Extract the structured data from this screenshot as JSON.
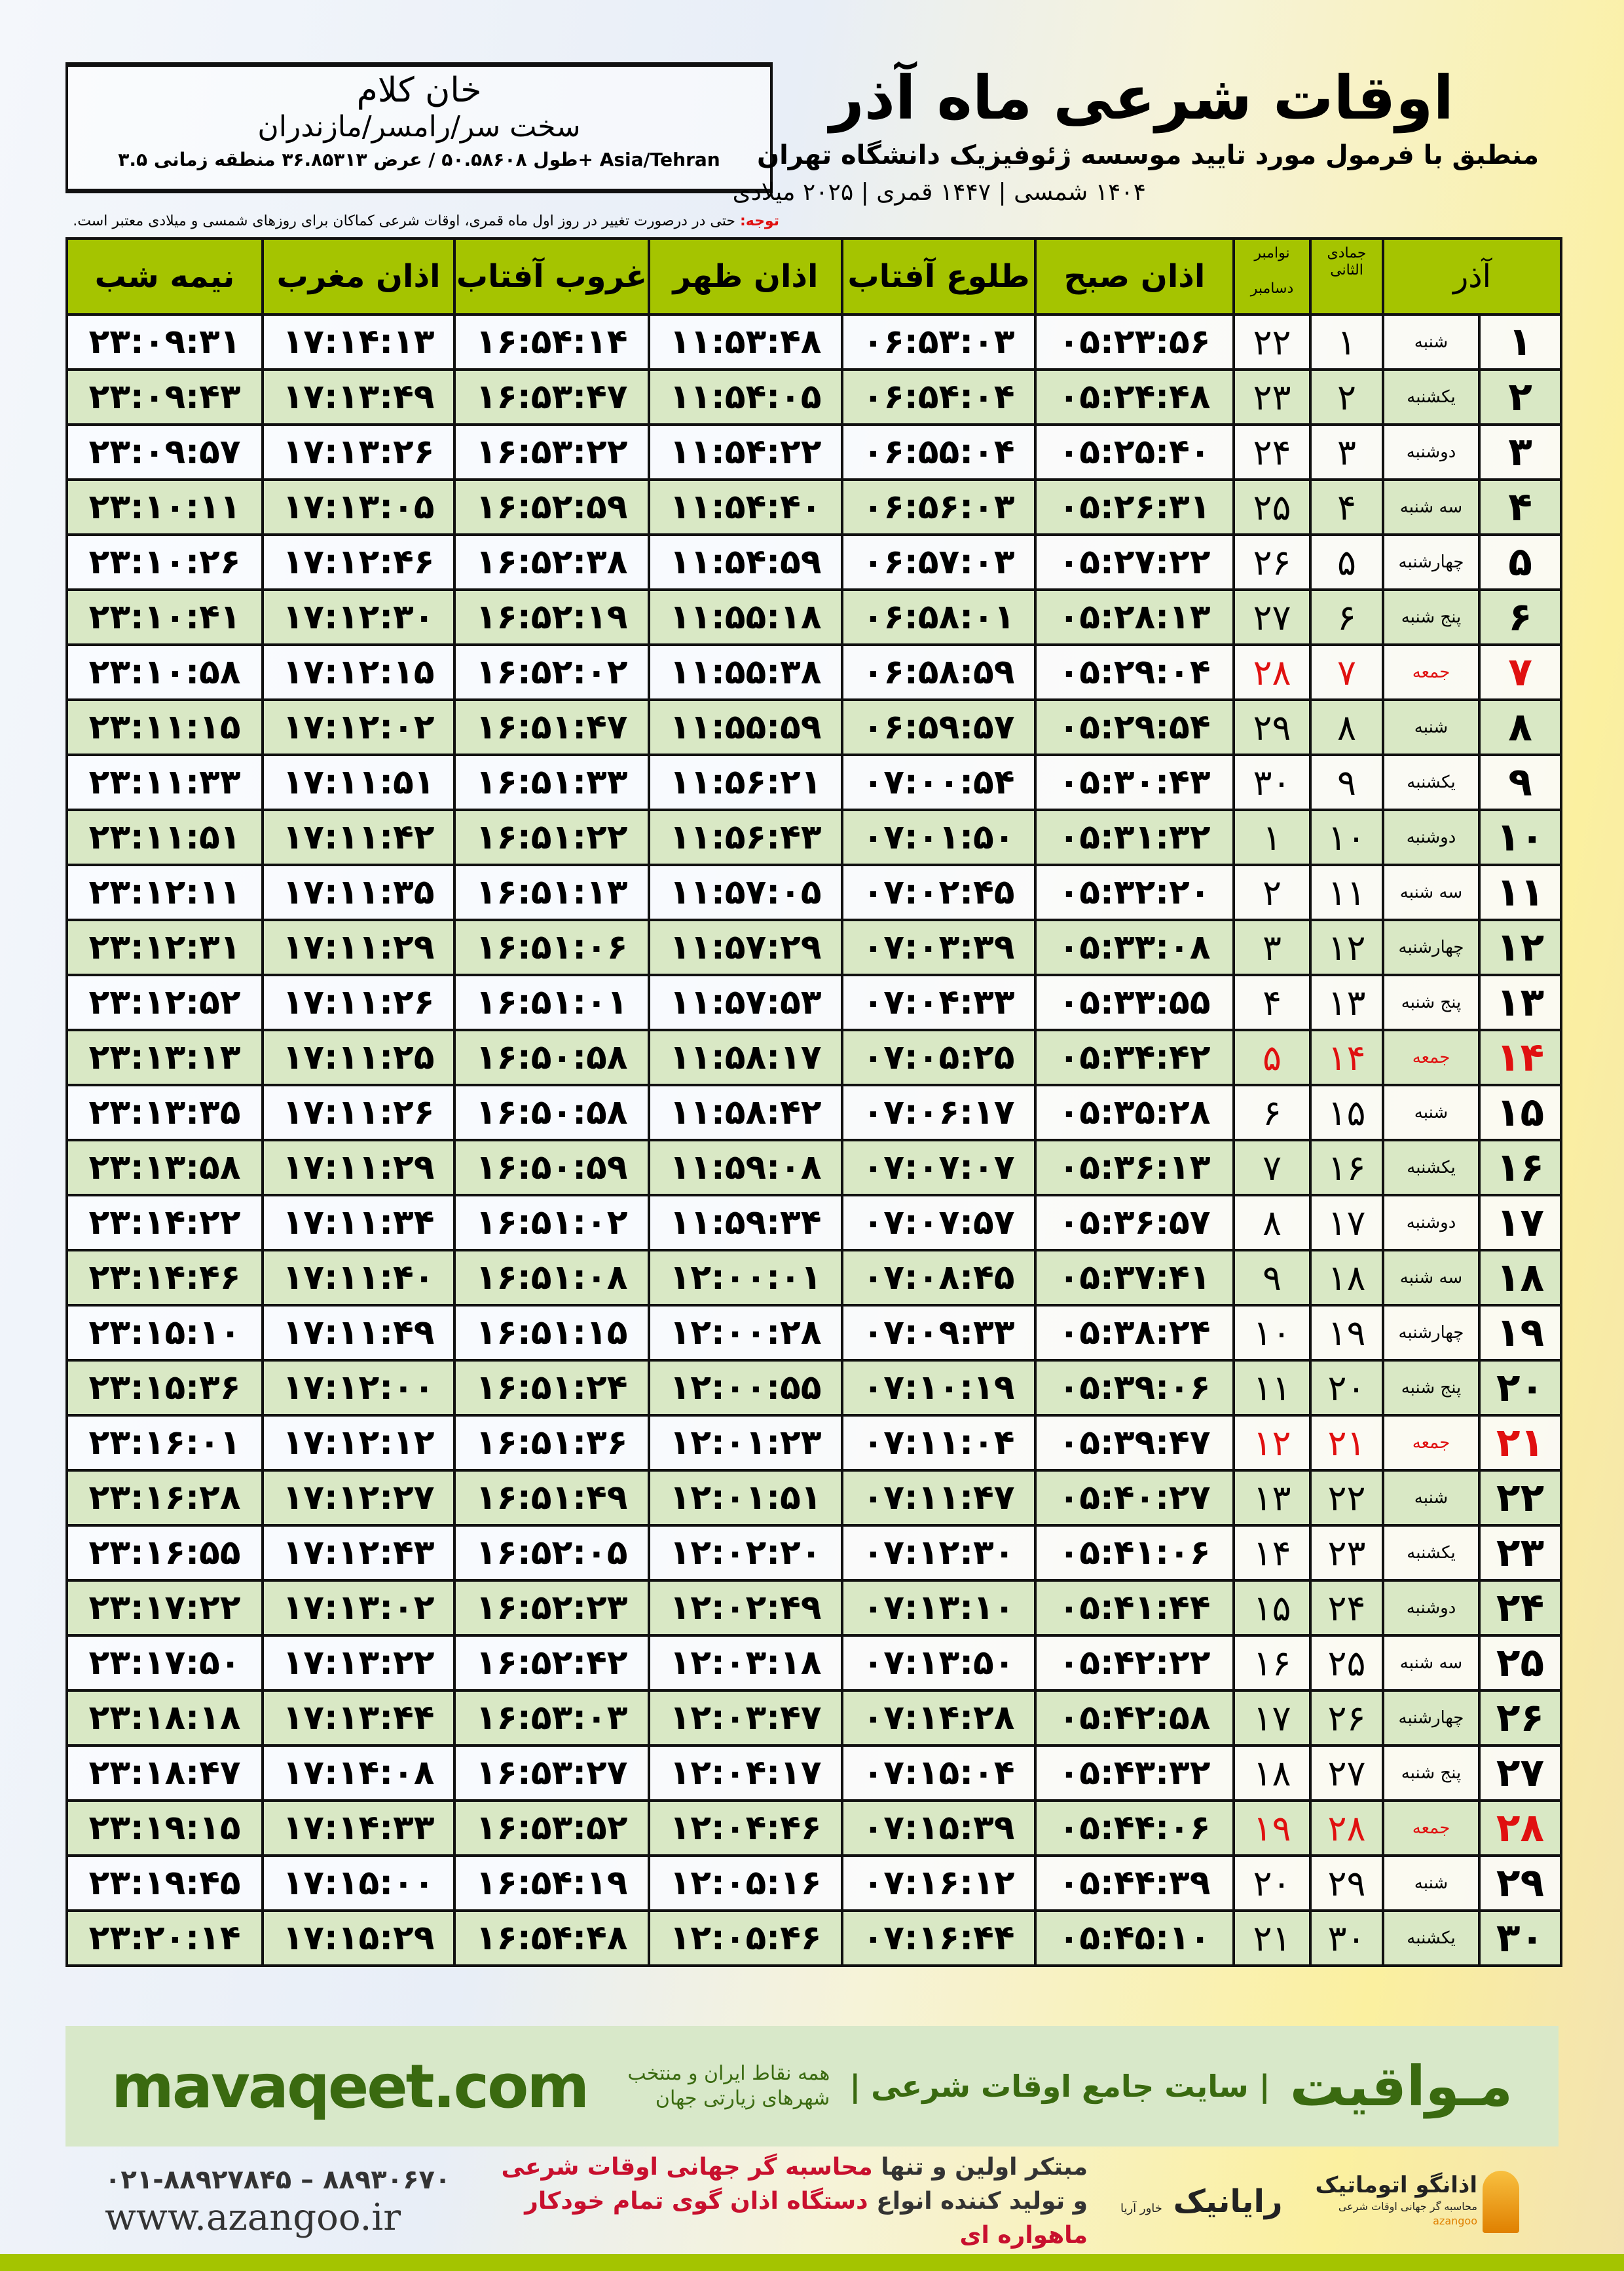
{
  "location": {
    "city": "خان کلام",
    "region": "سخت سر/رامسر/مازندران",
    "coords": "طول ۵۰.۵۸۶۰۸ / عرض ۳۶.۸۵۳۱۳ منطقه زمانی ۳.۵+ Asia/Tehran"
  },
  "header": {
    "title": "اوقات شرعی ماه آذر",
    "subtitle": "منطبق با فرمول مورد تایید موسسه ژئوفیزیک دانشگاه تهران",
    "years": "۱۴۰۴ شمسی | ۱۴۴۷ قمری | ۲۰۲۵ میلادی",
    "note_label": "توجه:",
    "note_text": " حتی در درصورت تغییر در روز اول ماه قمری، اوقات شرعی کماکان برای روزهای شمسی و میلادی معتبر است."
  },
  "table": {
    "headers": {
      "month": "آذر",
      "hijri": "جمادی الثانی",
      "greg_top": "نوامبر",
      "greg_bottom": "دسامبر",
      "sobh": "اذان صبح",
      "tolu": "طلوع آفتاب",
      "zohr": "اذان ظهر",
      "ghorub": "غروب آفتاب",
      "maghrib": "اذان مغرب",
      "nime": "نیمه شب"
    },
    "holiday_color": "#e01010",
    "header_color": "#a5c400",
    "rows": [
      {
        "day": "۱",
        "weekday": "شنبه",
        "hijri": "۱",
        "greg": "۲۲",
        "holiday": false,
        "times": [
          "۰۵:۲۳:۵۶",
          "۰۶:۵۳:۰۳",
          "۱۱:۵۳:۴۸",
          "۱۶:۵۴:۱۴",
          "۱۷:۱۴:۱۳",
          "۲۳:۰۹:۳۱"
        ]
      },
      {
        "day": "۲",
        "weekday": "یکشنبه",
        "hijri": "۲",
        "greg": "۲۳",
        "holiday": false,
        "times": [
          "۰۵:۲۴:۴۸",
          "۰۶:۵۴:۰۴",
          "۱۱:۵۴:۰۵",
          "۱۶:۵۳:۴۷",
          "۱۷:۱۳:۴۹",
          "۲۳:۰۹:۴۳"
        ]
      },
      {
        "day": "۳",
        "weekday": "دوشنبه",
        "hijri": "۳",
        "greg": "۲۴",
        "holiday": false,
        "times": [
          "۰۵:۲۵:۴۰",
          "۰۶:۵۵:۰۴",
          "۱۱:۵۴:۲۲",
          "۱۶:۵۳:۲۲",
          "۱۷:۱۳:۲۶",
          "۲۳:۰۹:۵۷"
        ]
      },
      {
        "day": "۴",
        "weekday": "سه شنبه",
        "hijri": "۴",
        "greg": "۲۵",
        "holiday": false,
        "times": [
          "۰۵:۲۶:۳۱",
          "۰۶:۵۶:۰۳",
          "۱۱:۵۴:۴۰",
          "۱۶:۵۲:۵۹",
          "۱۷:۱۳:۰۵",
          "۲۳:۱۰:۱۱"
        ]
      },
      {
        "day": "۵",
        "weekday": "چهارشنبه",
        "hijri": "۵",
        "greg": "۲۶",
        "holiday": false,
        "times": [
          "۰۵:۲۷:۲۲",
          "۰۶:۵۷:۰۳",
          "۱۱:۵۴:۵۹",
          "۱۶:۵۲:۳۸",
          "۱۷:۱۲:۴۶",
          "۲۳:۱۰:۲۶"
        ]
      },
      {
        "day": "۶",
        "weekday": "پنج شنبه",
        "hijri": "۶",
        "greg": "۲۷",
        "holiday": false,
        "times": [
          "۰۵:۲۸:۱۳",
          "۰۶:۵۸:۰۱",
          "۱۱:۵۵:۱۸",
          "۱۶:۵۲:۱۹",
          "۱۷:۱۲:۳۰",
          "۲۳:۱۰:۴۱"
        ]
      },
      {
        "day": "۷",
        "weekday": "جمعه",
        "hijri": "۷",
        "greg": "۲۸",
        "holiday": true,
        "times": [
          "۰۵:۲۹:۰۴",
          "۰۶:۵۸:۵۹",
          "۱۱:۵۵:۳۸",
          "۱۶:۵۲:۰۲",
          "۱۷:۱۲:۱۵",
          "۲۳:۱۰:۵۸"
        ]
      },
      {
        "day": "۸",
        "weekday": "شنبه",
        "hijri": "۸",
        "greg": "۲۹",
        "holiday": false,
        "times": [
          "۰۵:۲۹:۵۴",
          "۰۶:۵۹:۵۷",
          "۱۱:۵۵:۵۹",
          "۱۶:۵۱:۴۷",
          "۱۷:۱۲:۰۲",
          "۲۳:۱۱:۱۵"
        ]
      },
      {
        "day": "۹",
        "weekday": "یکشنبه",
        "hijri": "۹",
        "greg": "۳۰",
        "holiday": false,
        "times": [
          "۰۵:۳۰:۴۳",
          "۰۷:۰۰:۵۴",
          "۱۱:۵۶:۲۱",
          "۱۶:۵۱:۳۳",
          "۱۷:۱۱:۵۱",
          "۲۳:۱۱:۳۳"
        ]
      },
      {
        "day": "۱۰",
        "weekday": "دوشنبه",
        "hijri": "۱۰",
        "greg": "۱",
        "holiday": false,
        "times": [
          "۰۵:۳۱:۳۲",
          "۰۷:۰۱:۵۰",
          "۱۱:۵۶:۴۳",
          "۱۶:۵۱:۲۲",
          "۱۷:۱۱:۴۲",
          "۲۳:۱۱:۵۱"
        ]
      },
      {
        "day": "۱۱",
        "weekday": "سه شنبه",
        "hijri": "۱۱",
        "greg": "۲",
        "holiday": false,
        "times": [
          "۰۵:۳۲:۲۰",
          "۰۷:۰۲:۴۵",
          "۱۱:۵۷:۰۵",
          "۱۶:۵۱:۱۳",
          "۱۷:۱۱:۳۵",
          "۲۳:۱۲:۱۱"
        ]
      },
      {
        "day": "۱۲",
        "weekday": "چهارشنبه",
        "hijri": "۱۲",
        "greg": "۳",
        "holiday": false,
        "times": [
          "۰۵:۳۳:۰۸",
          "۰۷:۰۳:۳۹",
          "۱۱:۵۷:۲۹",
          "۱۶:۵۱:۰۶",
          "۱۷:۱۱:۲۹",
          "۲۳:۱۲:۳۱"
        ]
      },
      {
        "day": "۱۳",
        "weekday": "پنج شنبه",
        "hijri": "۱۳",
        "greg": "۴",
        "holiday": false,
        "times": [
          "۰۵:۳۳:۵۵",
          "۰۷:۰۴:۳۳",
          "۱۱:۵۷:۵۳",
          "۱۶:۵۱:۰۱",
          "۱۷:۱۱:۲۶",
          "۲۳:۱۲:۵۲"
        ]
      },
      {
        "day": "۱۴",
        "weekday": "جمعه",
        "hijri": "۱۴",
        "greg": "۵",
        "holiday": true,
        "times": [
          "۰۵:۳۴:۴۲",
          "۰۷:۰۵:۲۵",
          "۱۱:۵۸:۱۷",
          "۱۶:۵۰:۵۸",
          "۱۷:۱۱:۲۵",
          "۲۳:۱۳:۱۳"
        ]
      },
      {
        "day": "۱۵",
        "weekday": "شنبه",
        "hijri": "۱۵",
        "greg": "۶",
        "holiday": false,
        "times": [
          "۰۵:۳۵:۲۸",
          "۰۷:۰۶:۱۷",
          "۱۱:۵۸:۴۲",
          "۱۶:۵۰:۵۸",
          "۱۷:۱۱:۲۶",
          "۲۳:۱۳:۳۵"
        ]
      },
      {
        "day": "۱۶",
        "weekday": "یکشنبه",
        "hijri": "۱۶",
        "greg": "۷",
        "holiday": false,
        "times": [
          "۰۵:۳۶:۱۳",
          "۰۷:۰۷:۰۷",
          "۱۱:۵۹:۰۸",
          "۱۶:۵۰:۵۹",
          "۱۷:۱۱:۲۹",
          "۲۳:۱۳:۵۸"
        ]
      },
      {
        "day": "۱۷",
        "weekday": "دوشنبه",
        "hijri": "۱۷",
        "greg": "۸",
        "holiday": false,
        "times": [
          "۰۵:۳۶:۵۷",
          "۰۷:۰۷:۵۷",
          "۱۱:۵۹:۳۴",
          "۱۶:۵۱:۰۲",
          "۱۷:۱۱:۳۴",
          "۲۳:۱۴:۲۲"
        ]
      },
      {
        "day": "۱۸",
        "weekday": "سه شنبه",
        "hijri": "۱۸",
        "greg": "۹",
        "holiday": false,
        "times": [
          "۰۵:۳۷:۴۱",
          "۰۷:۰۸:۴۵",
          "۱۲:۰۰:۰۱",
          "۱۶:۵۱:۰۸",
          "۱۷:۱۱:۴۰",
          "۲۳:۱۴:۴۶"
        ]
      },
      {
        "day": "۱۹",
        "weekday": "چهارشنبه",
        "hijri": "۱۹",
        "greg": "۱۰",
        "holiday": false,
        "times": [
          "۰۵:۳۸:۲۴",
          "۰۷:۰۹:۳۳",
          "۱۲:۰۰:۲۸",
          "۱۶:۵۱:۱۵",
          "۱۷:۱۱:۴۹",
          "۲۳:۱۵:۱۰"
        ]
      },
      {
        "day": "۲۰",
        "weekday": "پنج شنبه",
        "hijri": "۲۰",
        "greg": "۱۱",
        "holiday": false,
        "times": [
          "۰۵:۳۹:۰۶",
          "۰۷:۱۰:۱۹",
          "۱۲:۰۰:۵۵",
          "۱۶:۵۱:۲۴",
          "۱۷:۱۲:۰۰",
          "۲۳:۱۵:۳۶"
        ]
      },
      {
        "day": "۲۱",
        "weekday": "جمعه",
        "hijri": "۲۱",
        "greg": "۱۲",
        "holiday": true,
        "times": [
          "۰۵:۳۹:۴۷",
          "۰۷:۱۱:۰۴",
          "۱۲:۰۱:۲۳",
          "۱۶:۵۱:۳۶",
          "۱۷:۱۲:۱۲",
          "۲۳:۱۶:۰۱"
        ]
      },
      {
        "day": "۲۲",
        "weekday": "شنبه",
        "hijri": "۲۲",
        "greg": "۱۳",
        "holiday": false,
        "times": [
          "۰۵:۴۰:۲۷",
          "۰۷:۱۱:۴۷",
          "۱۲:۰۱:۵۱",
          "۱۶:۵۱:۴۹",
          "۱۷:۱۲:۲۷",
          "۲۳:۱۶:۲۸"
        ]
      },
      {
        "day": "۲۳",
        "weekday": "یکشنبه",
        "hijri": "۲۳",
        "greg": "۱۴",
        "holiday": false,
        "times": [
          "۰۵:۴۱:۰۶",
          "۰۷:۱۲:۳۰",
          "۱۲:۰۲:۲۰",
          "۱۶:۵۲:۰۵",
          "۱۷:۱۲:۴۳",
          "۲۳:۱۶:۵۵"
        ]
      },
      {
        "day": "۲۴",
        "weekday": "دوشنبه",
        "hijri": "۲۴",
        "greg": "۱۵",
        "holiday": false,
        "times": [
          "۰۵:۴۱:۴۴",
          "۰۷:۱۳:۱۰",
          "۱۲:۰۲:۴۹",
          "۱۶:۵۲:۲۳",
          "۱۷:۱۳:۰۲",
          "۲۳:۱۷:۲۲"
        ]
      },
      {
        "day": "۲۵",
        "weekday": "سه شنبه",
        "hijri": "۲۵",
        "greg": "۱۶",
        "holiday": false,
        "times": [
          "۰۵:۴۲:۲۲",
          "۰۷:۱۳:۵۰",
          "۱۲:۰۳:۱۸",
          "۱۶:۵۲:۴۲",
          "۱۷:۱۳:۲۲",
          "۲۳:۱۷:۵۰"
        ]
      },
      {
        "day": "۲۶",
        "weekday": "چهارشنبه",
        "hijri": "۲۶",
        "greg": "۱۷",
        "holiday": false,
        "times": [
          "۰۵:۴۲:۵۸",
          "۰۷:۱۴:۲۸",
          "۱۲:۰۳:۴۷",
          "۱۶:۵۳:۰۳",
          "۱۷:۱۳:۴۴",
          "۲۳:۱۸:۱۸"
        ]
      },
      {
        "day": "۲۷",
        "weekday": "پنج شنبه",
        "hijri": "۲۷",
        "greg": "۱۸",
        "holiday": false,
        "times": [
          "۰۵:۴۳:۳۲",
          "۰۷:۱۵:۰۴",
          "۱۲:۰۴:۱۷",
          "۱۶:۵۳:۲۷",
          "۱۷:۱۴:۰۸",
          "۲۳:۱۸:۴۷"
        ]
      },
      {
        "day": "۲۸",
        "weekday": "جمعه",
        "hijri": "۲۸",
        "greg": "۱۹",
        "holiday": true,
        "times": [
          "۰۵:۴۴:۰۶",
          "۰۷:۱۵:۳۹",
          "۱۲:۰۴:۴۶",
          "۱۶:۵۳:۵۲",
          "۱۷:۱۴:۳۳",
          "۲۳:۱۹:۱۵"
        ]
      },
      {
        "day": "۲۹",
        "weekday": "شنبه",
        "hijri": "۲۹",
        "greg": "۲۰",
        "holiday": false,
        "times": [
          "۰۵:۴۴:۳۹",
          "۰۷:۱۶:۱۲",
          "۱۲:۰۵:۱۶",
          "۱۶:۵۴:۱۹",
          "۱۷:۱۵:۰۰",
          "۲۳:۱۹:۴۵"
        ]
      },
      {
        "day": "۳۰",
        "weekday": "یکشنبه",
        "hijri": "۳۰",
        "greg": "۲۱",
        "holiday": false,
        "times": [
          "۰۵:۴۵:۱۰",
          "۰۷:۱۶:۴۴",
          "۱۲:۰۵:۴۶",
          "۱۶:۵۴:۴۸",
          "۱۷:۱۵:۲۹",
          "۲۳:۲۰:۱۴"
        ]
      }
    ]
  },
  "footer": {
    "brand": "مـواقیت",
    "brand_tagline": "| سایت جامع اوقات شرعی |",
    "brand_sub": "همه نقاط ایران و منتخب شهرهای زیارتی جهان",
    "site": "mavaqeet.com",
    "brand_color": "#3a6a10",
    "promo_line1_a": "مبتکر اولین و تنها ",
    "promo_line1_b": "محاسبه گر جهانی اوقات شرعی",
    "promo_line2_a": "و تولید کننده انواع ",
    "promo_line2_b": "دستگاه اذان گوی تمام خودکار ماهواره ای",
    "phones": "۰۲۱-۸۸۹۲۷۸۴۵ – ۸۸۹۳۰۶۷۰",
    "website": "www.azangoo.ir",
    "logo_azangoo": "اذانگو اتوماتیک",
    "logo_azangoo_sub": "محاسبه گر جهانی اوقات شرعی",
    "logo_azangoo_en": "azangoo",
    "logo_rayanik": "رایانیک",
    "logo_rayanik_sub": "خاور آریا"
  }
}
